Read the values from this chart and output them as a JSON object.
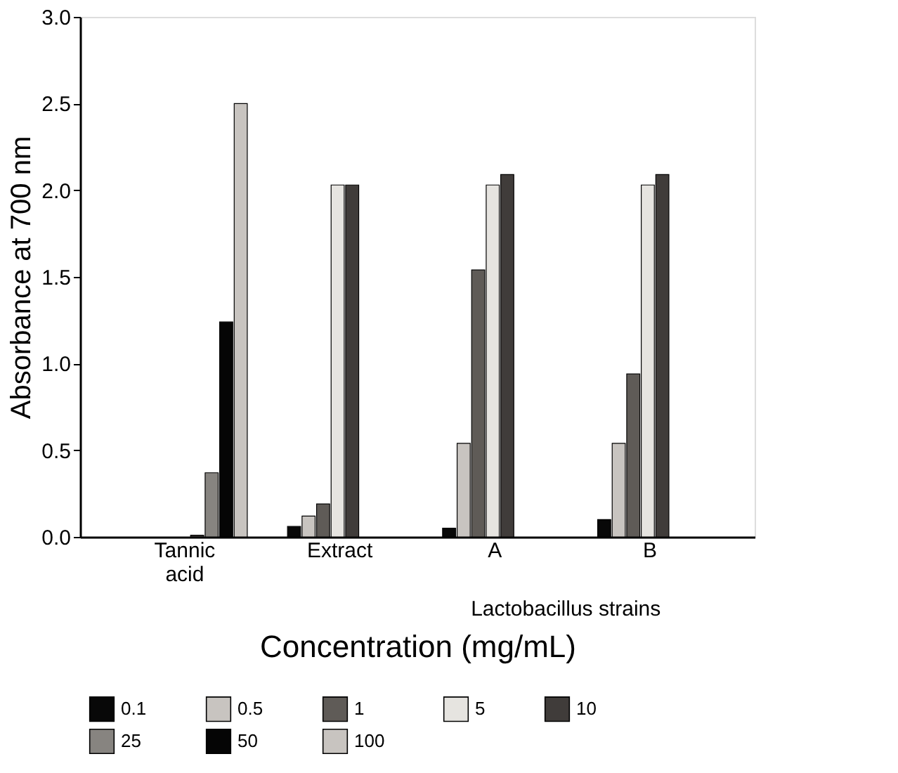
{
  "chart_data": {
    "type": "bar",
    "xlabel": "Concentration (mg/mL)",
    "ylabel": "Absorbance at 700 nm",
    "categories": [
      "Tannic acid",
      "Extract",
      "A",
      "B"
    ],
    "series": [
      {
        "name": "0.1",
        "color": "#080808",
        "values": [
          null,
          0.06,
          0.05,
          0.1
        ]
      },
      {
        "name": "0.5",
        "color": "#c8c4c0",
        "values": [
          null,
          0.12,
          0.54,
          0.54
        ]
      },
      {
        "name": "1",
        "color": "#5f5b57",
        "values": [
          null,
          0.19,
          1.54,
          0.94
        ]
      },
      {
        "name": "5",
        "color": "#e6e4e0",
        "values": [
          null,
          2.03,
          2.03,
          2.03
        ]
      },
      {
        "name": "10",
        "color": "#403c3a",
        "values": [
          0.01,
          2.03,
          2.09,
          2.09
        ]
      },
      {
        "name": "25",
        "color": "#878480",
        "values": [
          0.37,
          null,
          null,
          null
        ]
      },
      {
        "name": "50",
        "color": "#050505",
        "values": [
          1.24,
          null,
          null,
          null
        ]
      },
      {
        "name": "100",
        "color": "#c8c4c0",
        "values": [
          2.5,
          null,
          null,
          null
        ]
      }
    ],
    "ylim": [
      0,
      3.0
    ],
    "yticks": [
      {
        "value": 0,
        "label": "0.0"
      },
      {
        "value": 0.5,
        "label": "0.5"
      },
      {
        "value": 1,
        "label": "1.0"
      },
      {
        "value": 1.5,
        "label": "1.5"
      },
      {
        "value": 2,
        "label": "2.0"
      },
      {
        "value": 2.5,
        "label": "2.5"
      },
      {
        "value": 3,
        "label": "3.0"
      }
    ],
    "annotations": [
      "Lactobacillus strains"
    ],
    "legend": "bottom",
    "grid": false
  }
}
